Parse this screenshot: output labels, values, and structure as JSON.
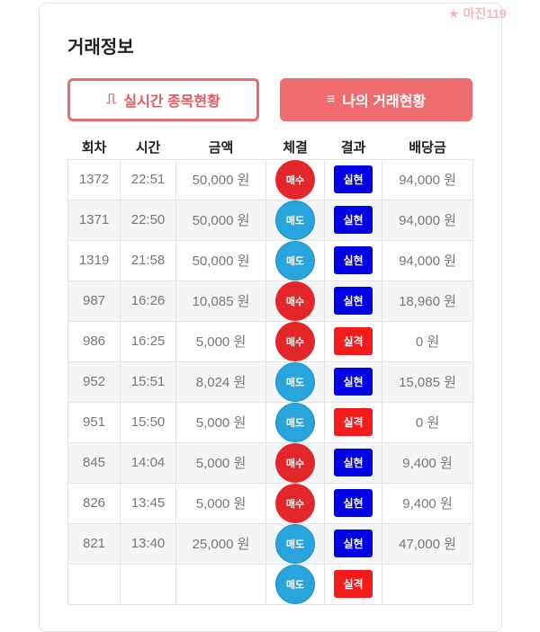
{
  "logo": "마진119",
  "title": "거래정보",
  "buttons": {
    "realtime": "실시간 종목현황",
    "mine": "나의 거래현황"
  },
  "columns": [
    "회차",
    "시간",
    "금액",
    "체결",
    "결과",
    "배당금"
  ],
  "rows": [
    {
      "round": "1372",
      "time": "22:51",
      "amount": "50,000 원",
      "side": "매수",
      "result": "실현",
      "payout": "94,000 원"
    },
    {
      "round": "1371",
      "time": "22:50",
      "amount": "50,000 원",
      "side": "매도",
      "result": "실현",
      "payout": "94,000 원"
    },
    {
      "round": "1319",
      "time": "21:58",
      "amount": "50,000 원",
      "side": "매도",
      "result": "실현",
      "payout": "94,000 원"
    },
    {
      "round": "987",
      "time": "16:26",
      "amount": "10,085 원",
      "side": "매수",
      "result": "실현",
      "payout": "18,960 원"
    },
    {
      "round": "986",
      "time": "16:25",
      "amount": "5,000 원",
      "side": "매수",
      "result": "실격",
      "payout": "0 원"
    },
    {
      "round": "952",
      "time": "15:51",
      "amount": "8,024 원",
      "side": "매도",
      "result": "실현",
      "payout": "15,085 원"
    },
    {
      "round": "951",
      "time": "15:50",
      "amount": "5,000 원",
      "side": "매도",
      "result": "실격",
      "payout": "0 원"
    },
    {
      "round": "845",
      "time": "14:04",
      "amount": "5,000 원",
      "side": "매수",
      "result": "실현",
      "payout": "9,400 원"
    },
    {
      "round": "826",
      "time": "13:45",
      "amount": "5,000 원",
      "side": "매수",
      "result": "실현",
      "payout": "9,400 원"
    },
    {
      "round": "821",
      "time": "13:40",
      "amount": "25,000 원",
      "side": "매도",
      "result": "실현",
      "payout": "47,000 원"
    },
    {
      "round": "",
      "time": "",
      "amount": "",
      "side": "매도",
      "result": "실격",
      "payout": ""
    }
  ]
}
